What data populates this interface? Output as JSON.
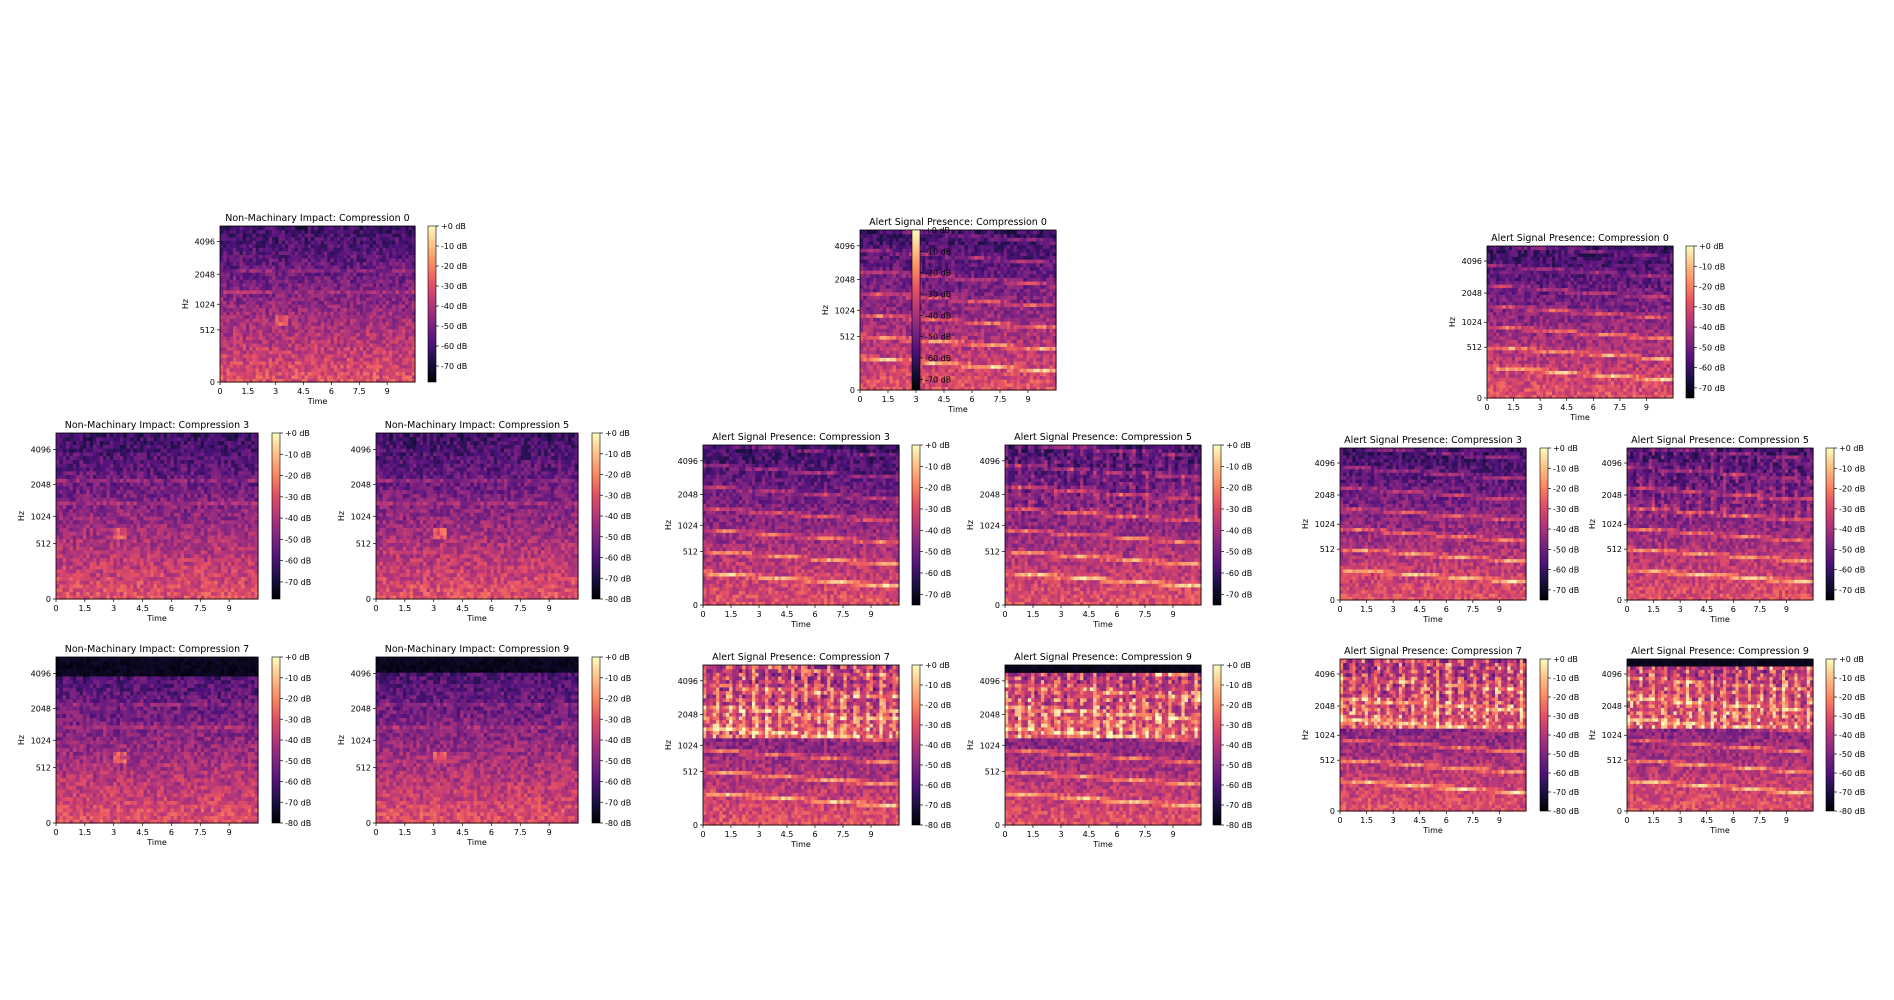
{
  "chart_data": [
    {
      "type": "heatmap",
      "group": 0,
      "kind": "impact",
      "compression": 0,
      "title": "Non-Machinary Impact: Compression 0",
      "xlabel": "Time",
      "ylabel": "Hz",
      "xticks": [
        "0",
        "1.5",
        "3",
        "4.5",
        "6",
        "7.5",
        "9"
      ],
      "xlim": [
        0,
        10.5
      ],
      "yticks": [
        "0",
        "512",
        "1024",
        "2048",
        "4096"
      ],
      "colorbar_ticks": [
        "+0 dB",
        "-10 dB",
        "-20 dB",
        "-30 dB",
        "-40 dB",
        "-50 dB",
        "-60 dB",
        "-70 dB"
      ],
      "colorbar_range": [
        -78,
        0
      ]
    },
    {
      "type": "heatmap",
      "group": 0,
      "kind": "impact",
      "compression": 3,
      "title": "Non-Machinary Impact: Compression 3",
      "xlabel": "Time",
      "ylabel": "Hz",
      "xticks": [
        "0",
        "1.5",
        "3",
        "4.5",
        "6",
        "7.5",
        "9"
      ],
      "xlim": [
        0,
        10.5
      ],
      "yticks": [
        "0",
        "512",
        "1024",
        "2048",
        "4096"
      ],
      "colorbar_ticks": [
        "+0 dB",
        "-10 dB",
        "-20 dB",
        "-30 dB",
        "-40 dB",
        "-50 dB",
        "-60 dB",
        "-70 dB"
      ],
      "colorbar_range": [
        -78,
        0
      ]
    },
    {
      "type": "heatmap",
      "group": 0,
      "kind": "impact",
      "compression": 5,
      "title": "Non-Machinary Impact: Compression 5",
      "xlabel": "Time",
      "ylabel": "Hz",
      "xticks": [
        "0",
        "1.5",
        "3",
        "4.5",
        "6",
        "7.5",
        "9"
      ],
      "xlim": [
        0,
        10.5
      ],
      "yticks": [
        "0",
        "512",
        "1024",
        "2048",
        "4096"
      ],
      "colorbar_ticks": [
        "+0 dB",
        "-10 dB",
        "-20 dB",
        "-30 dB",
        "-40 dB",
        "-50 dB",
        "-60 dB",
        "-70 dB",
        "-80 dB"
      ],
      "colorbar_range": [
        -80,
        0
      ]
    },
    {
      "type": "heatmap",
      "group": 0,
      "kind": "impact",
      "compression": 7,
      "title": "Non-Machinary Impact: Compression 7",
      "xlabel": "Time",
      "ylabel": "Hz",
      "xticks": [
        "0",
        "1.5",
        "3",
        "4.5",
        "6",
        "7.5",
        "9"
      ],
      "xlim": [
        0,
        10.5
      ],
      "yticks": [
        "0",
        "512",
        "1024",
        "2048",
        "4096"
      ],
      "colorbar_ticks": [
        "+0 dB",
        "-10 dB",
        "-20 dB",
        "-30 dB",
        "-40 dB",
        "-50 dB",
        "-60 dB",
        "-70 dB",
        "-80 dB"
      ],
      "colorbar_range": [
        -80,
        0
      ]
    },
    {
      "type": "heatmap",
      "group": 0,
      "kind": "impact",
      "compression": 9,
      "title": "Non-Machinary Impact: Compression 9",
      "xlabel": "Time",
      "ylabel": "Hz",
      "xticks": [
        "0",
        "1.5",
        "3",
        "4.5",
        "6",
        "7.5",
        "9"
      ],
      "xlim": [
        0,
        10.5
      ],
      "yticks": [
        "0",
        "512",
        "1024",
        "2048",
        "4096"
      ],
      "colorbar_ticks": [
        "+0 dB",
        "-10 dB",
        "-20 dB",
        "-30 dB",
        "-40 dB",
        "-50 dB",
        "-60 dB",
        "-70 dB",
        "-80 dB"
      ],
      "colorbar_range": [
        -80,
        0
      ]
    },
    {
      "type": "heatmap",
      "group": 1,
      "kind": "alert",
      "compression": 0,
      "title": "Alert Signal Presence: Compression 0",
      "xlabel": "Time",
      "ylabel": "Hz",
      "xticks": [
        "0",
        "1.5",
        "3",
        "4.5",
        "6",
        "7.5",
        "9"
      ],
      "xlim": [
        0,
        10.5
      ],
      "yticks": [
        "0",
        "512",
        "1024",
        "2048",
        "4096"
      ],
      "colorbar_ticks": [
        "+0 dB",
        "-10 dB",
        "-20 dB",
        "-30 dB",
        "-40 dB",
        "-50 dB",
        "-60 dB",
        "-70 dB"
      ],
      "colorbar_range": [
        -75,
        0
      ]
    },
    {
      "type": "heatmap",
      "group": 1,
      "kind": "alert",
      "compression": 3,
      "title": "Alert Signal Presence: Compression 3",
      "xlabel": "Time",
      "ylabel": "Hz",
      "xticks": [
        "0",
        "1.5",
        "3",
        "4.5",
        "6",
        "7.5",
        "9"
      ],
      "xlim": [
        0,
        10.5
      ],
      "yticks": [
        "0",
        "512",
        "1024",
        "2048",
        "4096"
      ],
      "colorbar_ticks": [
        "+0 dB",
        "-10 dB",
        "-20 dB",
        "-30 dB",
        "-40 dB",
        "-50 dB",
        "-60 dB",
        "-70 dB"
      ],
      "colorbar_range": [
        -75,
        0
      ]
    },
    {
      "type": "heatmap",
      "group": 1,
      "kind": "alert",
      "compression": 5,
      "title": "Alert Signal Presence: Compression 5",
      "xlabel": "Time",
      "ylabel": "Hz",
      "xticks": [
        "0",
        "1.5",
        "3",
        "4.5",
        "6",
        "7.5",
        "9"
      ],
      "xlim": [
        0,
        10.5
      ],
      "yticks": [
        "0",
        "512",
        "1024",
        "2048",
        "4096"
      ],
      "colorbar_ticks": [
        "+0 dB",
        "-10 dB",
        "-20 dB",
        "-30 dB",
        "-40 dB",
        "-50 dB",
        "-60 dB",
        "-70 dB"
      ],
      "colorbar_range": [
        -75,
        0
      ]
    },
    {
      "type": "heatmap",
      "group": 1,
      "kind": "alert",
      "compression": 7,
      "title": "Alert Signal Presence: Compression 7",
      "xlabel": "Time",
      "ylabel": "Hz",
      "xticks": [
        "0",
        "1.5",
        "3",
        "4.5",
        "6",
        "7.5",
        "9"
      ],
      "xlim": [
        0,
        10.5
      ],
      "yticks": [
        "0",
        "512",
        "1024",
        "2048",
        "4096"
      ],
      "colorbar_ticks": [
        "+0 dB",
        "-10 dB",
        "-20 dB",
        "-30 dB",
        "-40 dB",
        "-50 dB",
        "-60 dB",
        "-70 dB",
        "-80 dB"
      ],
      "colorbar_range": [
        -80,
        0
      ]
    },
    {
      "type": "heatmap",
      "group": 1,
      "kind": "alert",
      "compression": 9,
      "title": "Alert Signal Presence: Compression 9",
      "xlabel": "Time",
      "ylabel": "Hz",
      "xticks": [
        "0",
        "1.5",
        "3",
        "4.5",
        "6",
        "7.5",
        "9"
      ],
      "xlim": [
        0,
        10.5
      ],
      "yticks": [
        "0",
        "512",
        "1024",
        "2048",
        "4096"
      ],
      "colorbar_ticks": [
        "+0 dB",
        "-10 dB",
        "-20 dB",
        "-30 dB",
        "-40 dB",
        "-50 dB",
        "-60 dB",
        "-70 dB",
        "-80 dB"
      ],
      "colorbar_range": [
        -80,
        0
      ]
    },
    {
      "type": "heatmap",
      "group": 2,
      "kind": "alert",
      "compression": 0,
      "title": "Alert Signal Presence: Compression 0",
      "xlabel": "Time",
      "ylabel": "Hz",
      "xticks": [
        "0",
        "1.5",
        "3",
        "4.5",
        "6",
        "7.5",
        "9"
      ],
      "xlim": [
        0,
        10.5
      ],
      "yticks": [
        "0",
        "512",
        "1024",
        "2048",
        "4096"
      ],
      "colorbar_ticks": [
        "+0 dB",
        "-10 dB",
        "-20 dB",
        "-30 dB",
        "-40 dB",
        "-50 dB",
        "-60 dB",
        "-70 dB"
      ],
      "colorbar_range": [
        -75,
        0
      ]
    },
    {
      "type": "heatmap",
      "group": 2,
      "kind": "alert",
      "compression": 3,
      "title": "Alert Signal Presence: Compression 3",
      "xlabel": "Time",
      "ylabel": "Hz",
      "xticks": [
        "0",
        "1.5",
        "3",
        "4.5",
        "6",
        "7.5",
        "9"
      ],
      "xlim": [
        0,
        10.5
      ],
      "yticks": [
        "0",
        "512",
        "1024",
        "2048",
        "4096"
      ],
      "colorbar_ticks": [
        "+0 dB",
        "-10 dB",
        "-20 dB",
        "-30 dB",
        "-40 dB",
        "-50 dB",
        "-60 dB",
        "-70 dB"
      ],
      "colorbar_range": [
        -75,
        0
      ]
    },
    {
      "type": "heatmap",
      "group": 2,
      "kind": "alert",
      "compression": 5,
      "title": "Alert Signal Presence: Compression 5",
      "xlabel": "Time",
      "ylabel": "Hz",
      "xticks": [
        "0",
        "1.5",
        "3",
        "4.5",
        "6",
        "7.5",
        "9"
      ],
      "xlim": [
        0,
        10.5
      ],
      "yticks": [
        "0",
        "512",
        "1024",
        "2048",
        "4096"
      ],
      "colorbar_ticks": [
        "+0 dB",
        "-10 dB",
        "-20 dB",
        "-30 dB",
        "-40 dB",
        "-50 dB",
        "-60 dB",
        "-70 dB"
      ],
      "colorbar_range": [
        -75,
        0
      ]
    },
    {
      "type": "heatmap",
      "group": 2,
      "kind": "alert",
      "compression": 7,
      "title": "Alert Signal Presence: Compression 7",
      "xlabel": "Time",
      "ylabel": "Hz",
      "xticks": [
        "0",
        "1.5",
        "3",
        "4.5",
        "6",
        "7.5",
        "9"
      ],
      "xlim": [
        0,
        10.5
      ],
      "yticks": [
        "0",
        "512",
        "1024",
        "2048",
        "4096"
      ],
      "colorbar_ticks": [
        "+0 dB",
        "-10 dB",
        "-20 dB",
        "-30 dB",
        "-40 dB",
        "-50 dB",
        "-60 dB",
        "-70 dB",
        "-80 dB"
      ],
      "colorbar_range": [
        -80,
        0
      ]
    },
    {
      "type": "heatmap",
      "group": 2,
      "kind": "alert",
      "compression": 9,
      "title": "Alert Signal Presence: Compression 9",
      "xlabel": "Time",
      "ylabel": "Hz",
      "xticks": [
        "0",
        "1.5",
        "3",
        "4.5",
        "6",
        "7.5",
        "9"
      ],
      "xlim": [
        0,
        10.5
      ],
      "yticks": [
        "0",
        "512",
        "1024",
        "2048",
        "4096"
      ],
      "colorbar_ticks": [
        "+0 dB",
        "-10 dB",
        "-20 dB",
        "-30 dB",
        "-40 dB",
        "-50 dB",
        "-60 dB",
        "-70 dB",
        "-80 dB"
      ],
      "colorbar_range": [
        -80,
        0
      ]
    }
  ]
}
